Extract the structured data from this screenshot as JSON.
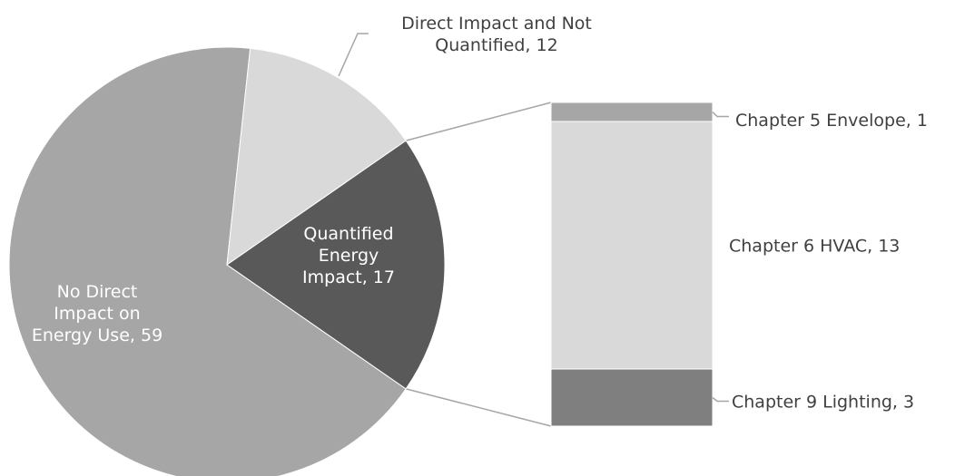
{
  "chart_data": {
    "type": "bar-of-pie",
    "pie": {
      "slices": [
        {
          "name": "No Direct Impact on Energy Use",
          "value": 59,
          "label_lines": [
            "No Direct",
            "Impact on",
            "Energy Use, 59"
          ],
          "color": "#a6a6a6"
        },
        {
          "name": "Direct Impact and Not Quantified",
          "value": 12,
          "label_lines": [
            "Direct Impact and Not",
            "Quantified, 12"
          ],
          "color": "#d9d9d9"
        },
        {
          "name": "Quantified Energy Impact",
          "value": 17,
          "label_lines": [
            "Quantified",
            "Energy",
            "Impact, 17"
          ],
          "color": "#595959"
        }
      ]
    },
    "bar": {
      "segments": [
        {
          "name": "Chapter 5 Envelope",
          "value": 1,
          "label": "Chapter 5 Envelope, 1",
          "color": "#a6a6a6"
        },
        {
          "name": "Chapter 6 HVAC",
          "value": 13,
          "label": "Chapter 6 HVAC, 13",
          "color": "#d9d9d9"
        },
        {
          "name": "Chapter 9 Lighting",
          "value": 3,
          "label": "Chapter 9 Lighting, 3",
          "color": "#7f7f7f"
        }
      ]
    },
    "leader_color": "#a6a6a6",
    "connector_color": "#a6a6a6",
    "label_color": "#404040",
    "inside_label_color": "#ffffff"
  }
}
